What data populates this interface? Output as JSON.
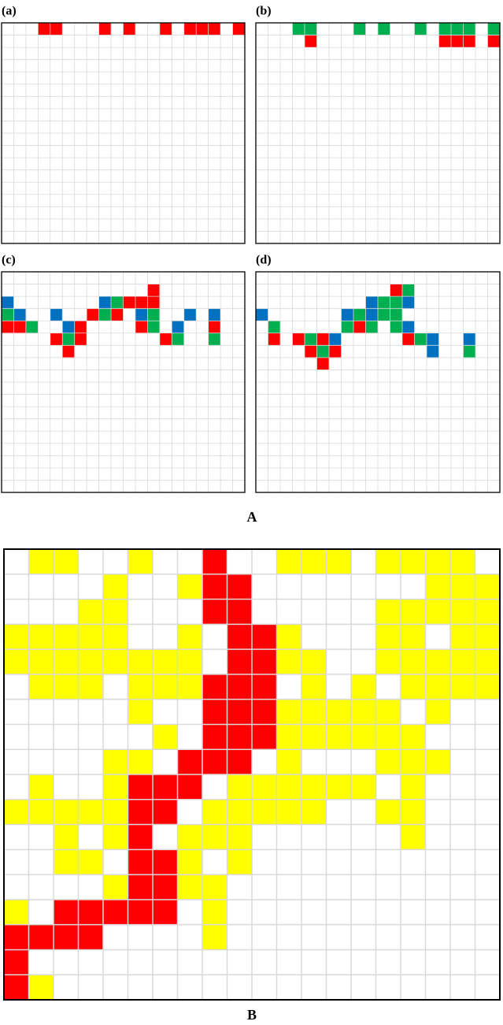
{
  "part_a": {
    "label": "A",
    "panels": [
      {
        "label": "(a)"
      },
      {
        "label": "(b)"
      },
      {
        "label": "(c)"
      },
      {
        "label": "(d)"
      }
    ]
  },
  "part_b": {
    "label": "B"
  }
}
